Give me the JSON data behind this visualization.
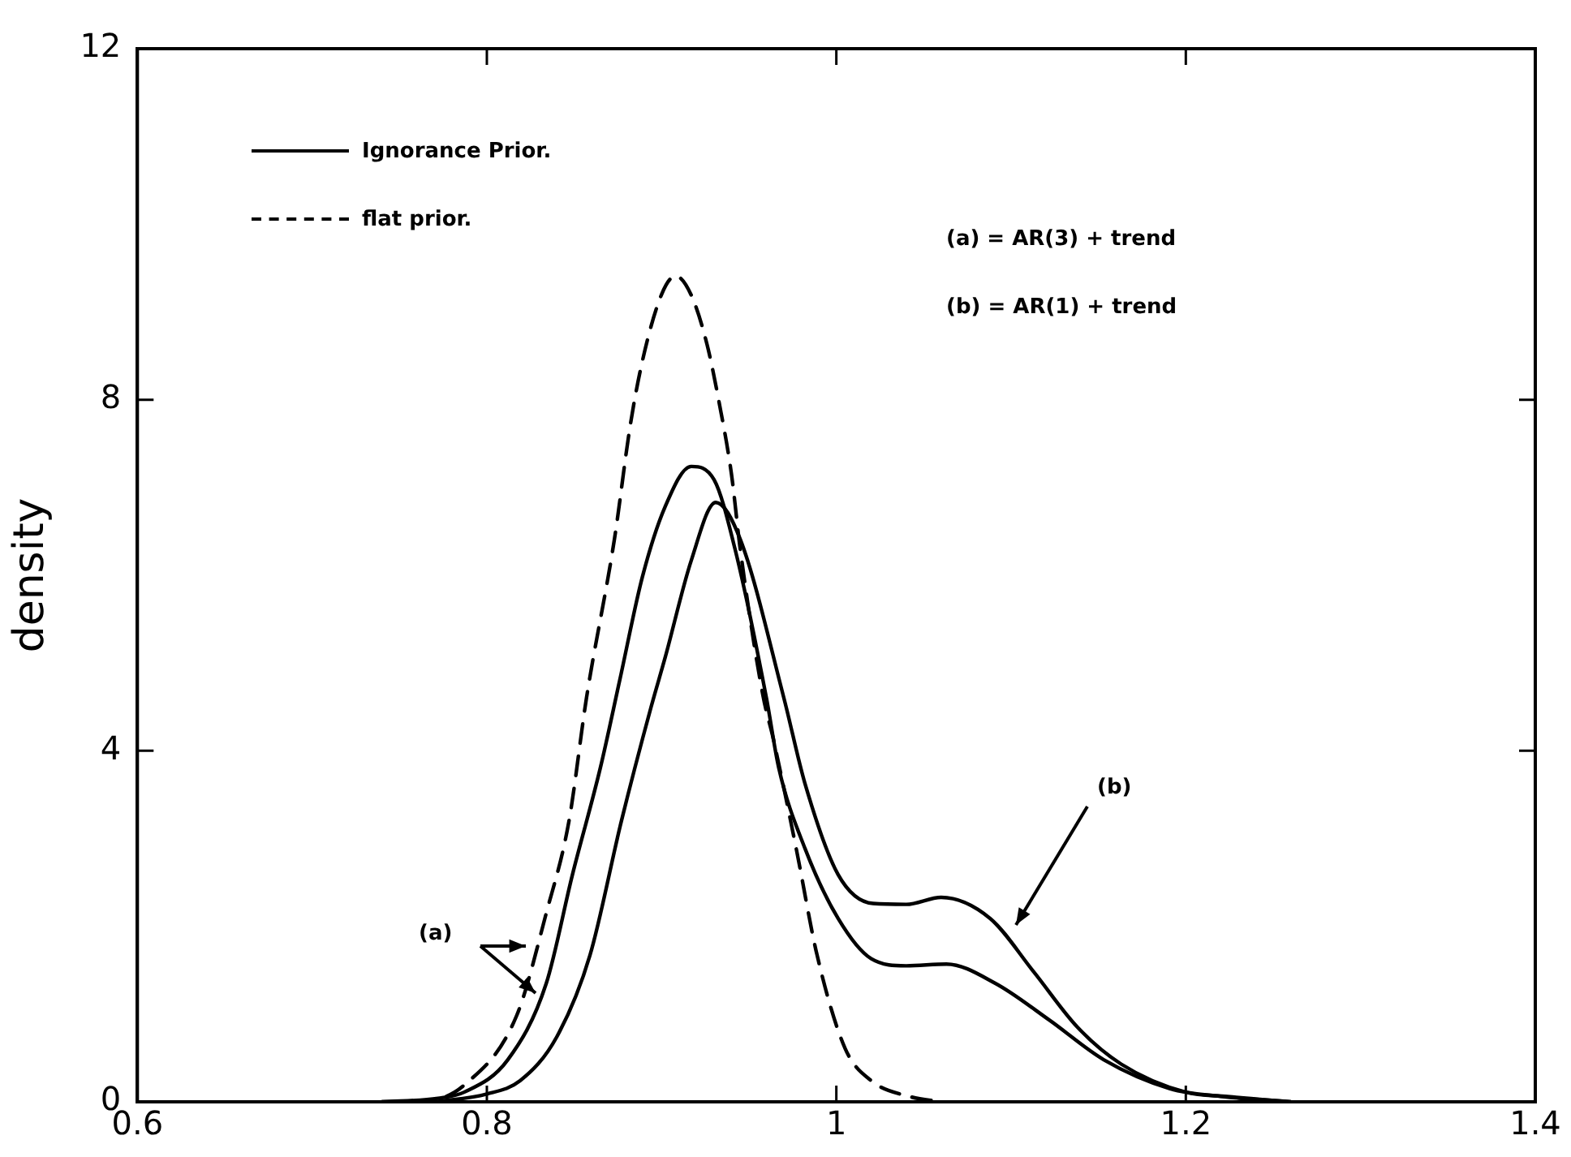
{
  "chart_data": {
    "type": "line",
    "ylabel": "density",
    "xlim": [
      0.6,
      1.4
    ],
    "xticks": [
      0.6,
      0.8,
      1.0,
      1.2,
      1.4
    ],
    "ylim": [
      0,
      12
    ],
    "yticks": [
      0,
      4,
      8,
      12
    ],
    "grid": false,
    "legend": "top left",
    "marker": "none",
    "series": [
      {
        "name": "flat prior.",
        "color": "#000000",
        "line_style": "dashed",
        "x": [
          0.74,
          0.768,
          0.787,
          0.817,
          0.834,
          0.847,
          0.857,
          0.873,
          0.882,
          0.889,
          0.9,
          0.908,
          0.917,
          0.926,
          0.933,
          0.94,
          0.945,
          0.958,
          0.964,
          0.977,
          0.989,
          1.005,
          1.02,
          1.042,
          1.06
        ],
        "values": [
          0,
          0.02,
          0.19,
          0.98,
          2.15,
          3.2,
          4.6,
          6.41,
          7.7,
          8.44,
          9.2,
          9.41,
          9.19,
          8.63,
          7.96,
          7.15,
          6.3,
          4.63,
          4.13,
          2.89,
          1.67,
          0.61,
          0.24,
          0.06,
          0
        ]
      },
      {
        "name": "Ignorance Prior.",
        "color": "#000000",
        "line_style": "solid",
        "x": [
          0.74,
          0.772,
          0.787,
          0.812,
          0.834,
          0.849,
          0.865,
          0.876,
          0.889,
          0.902,
          0.917,
          0.93,
          0.942,
          0.96,
          0.967,
          0.982,
          1.001,
          1.02,
          1.04,
          1.063,
          1.091,
          1.122,
          1.153,
          1.191,
          1.221,
          1.26
        ],
        "values": [
          0,
          0.04,
          0.11,
          0.48,
          1.35,
          2.59,
          3.81,
          4.8,
          5.98,
          6.78,
          7.24,
          7.09,
          6.3,
          4.6,
          3.81,
          2.89,
          2.09,
          1.63,
          1.55,
          1.57,
          1.35,
          0.93,
          0.48,
          0.15,
          0.06,
          0
        ]
      },
      {
        "color": "#000000",
        "line_style": "solid",
        "x": [
          0.77,
          0.8,
          0.819,
          0.84,
          0.859,
          0.877,
          0.894,
          0.902,
          0.917,
          0.931,
          0.945,
          0.97,
          0.982,
          1.001,
          1.021,
          1.04,
          1.06,
          1.088,
          1.113,
          1.138,
          1.163,
          1.2,
          1.224,
          1.26
        ],
        "values": [
          0,
          0.09,
          0.24,
          0.74,
          1.67,
          3.2,
          4.5,
          5.06,
          6.17,
          6.83,
          6.41,
          4.6,
          3.63,
          2.59,
          2.26,
          2.25,
          2.33,
          2.09,
          1.48,
          0.85,
          0.43,
          0.11,
          0.06,
          0
        ]
      }
    ],
    "annotations": [
      "(a)",
      "(b)",
      "(a) = AR(3) + trend",
      "(b) = AR(1) + trend"
    ]
  }
}
